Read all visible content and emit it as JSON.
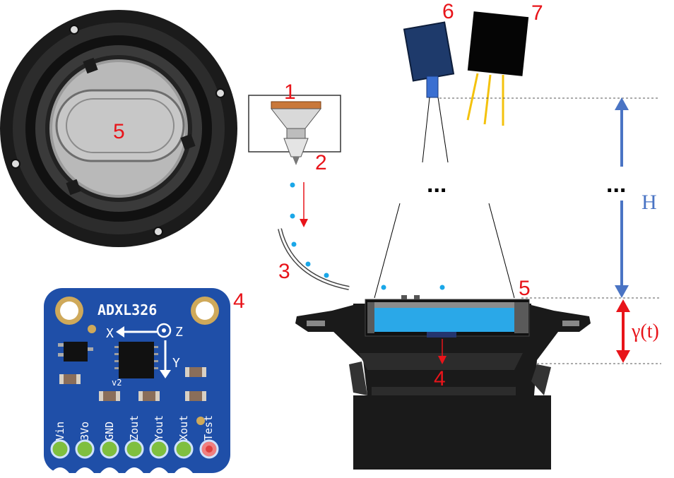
{
  "callouts": {
    "n1": "1",
    "n2": "2",
    "n3": "3",
    "n4_board": "4",
    "n4_speaker": "4",
    "n5_top": "5",
    "n5_side": "5",
    "n6": "6",
    "n7": "7"
  },
  "dots": {
    "middle": "...",
    "right": "..."
  },
  "dims": {
    "height_label": "H",
    "displacement_label": "γ(t)"
  },
  "board": {
    "chip_name": "ADXL326",
    "axis_x": "X",
    "axis_y": "Y",
    "axis_z": "Z",
    "version": "v2",
    "pins": [
      "Vin",
      "3Vo",
      "GND",
      "Zout",
      "Yout",
      "Xout",
      "Test"
    ]
  },
  "colors": {
    "callout_red": "#e8141a",
    "arrow_blue": "#4a74c4",
    "droplet_blue": "#1aa7e8",
    "board_blue": "#1f4fa8",
    "speaker_black": "#1a1a1a",
    "liquid_blue": "#2aa8e8",
    "camera_blue": "#1e3a6b",
    "laser_yellow": "#f4c20d"
  }
}
